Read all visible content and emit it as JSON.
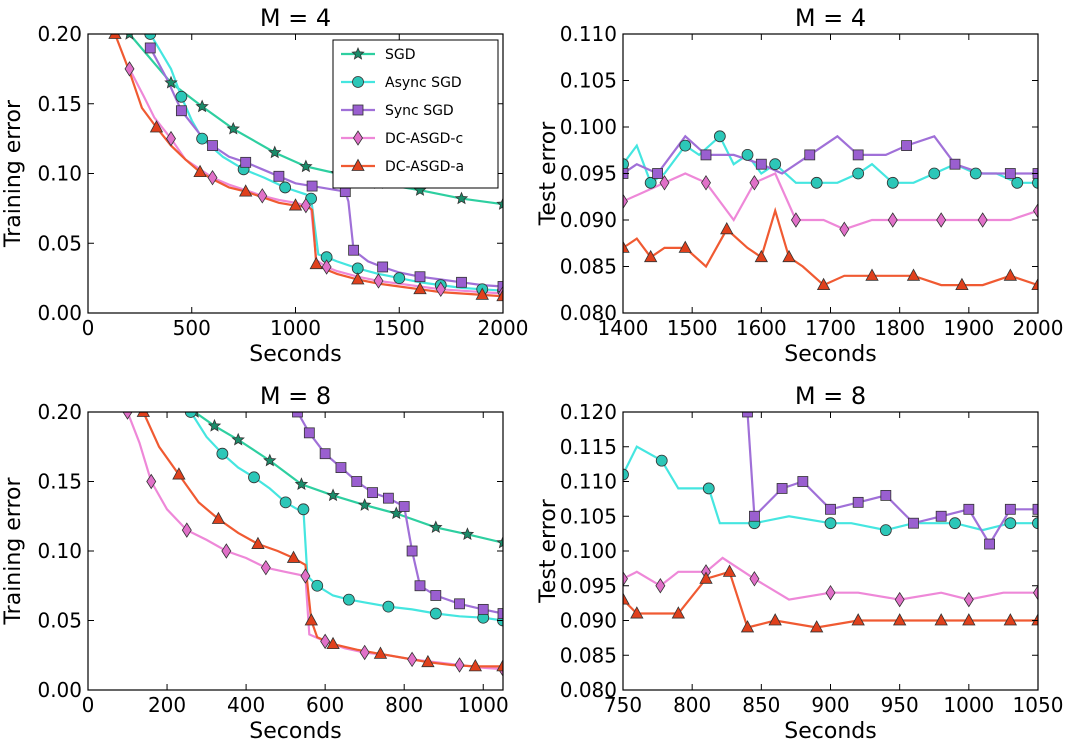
{
  "colors": {
    "SGD": "#2ecfa0",
    "Async SGD": "#45e6e0",
    "Sync SGD": "#a070d8",
    "DC-ASGD-c": "#ee88d8",
    "DC-ASGD-a": "#f05a32"
  },
  "marker_colors": {
    "SGD": "#1a8c6a",
    "Async SGD": "#2cc7b8",
    "Sync SGD": "#9a5fd0",
    "DC-ASGD-c": "#e070c8",
    "DC-ASGD-a": "#e0401c"
  },
  "chart_data": [
    {
      "type": "line",
      "title": "M = 4",
      "xlabel": "Seconds",
      "ylabel": "Training error",
      "xlim": [
        0,
        2000
      ],
      "ylim": [
        0.0,
        0.2
      ],
      "xticks": [
        0,
        500,
        1000,
        1500,
        2000
      ],
      "yticks": [
        0.0,
        0.05,
        0.1,
        0.15,
        0.2
      ],
      "ytick_labels": [
        "0.00",
        "0.05",
        "0.10",
        "0.15",
        "0.20"
      ],
      "legend": {
        "position": "upper right",
        "entries": [
          "SGD",
          "Async SGD",
          "Sync SGD",
          "DC-ASGD-c",
          "DC-ASGD-a"
        ],
        "markers": [
          "star",
          "circle",
          "square",
          "diamond",
          "triangle"
        ]
      },
      "series": [
        {
          "name": "SGD",
          "marker": "star",
          "x": [
            200,
            400,
            550,
            700,
            900,
            1050,
            1200,
            1400,
            1600,
            1800,
            2000
          ],
          "y": [
            0.2,
            0.165,
            0.148,
            0.132,
            0.115,
            0.105,
            0.1,
            0.093,
            0.088,
            0.082,
            0.078
          ]
        },
        {
          "name": "Async SGD",
          "marker": "circle",
          "x": [
            300,
            400,
            450,
            500,
            550,
            650,
            750,
            850,
            950,
            1050,
            1075,
            1110,
            1150,
            1200,
            1300,
            1400,
            1500,
            1600,
            1700,
            1800,
            1900,
            2000
          ],
          "y": [
            0.2,
            0.175,
            0.155,
            0.138,
            0.125,
            0.112,
            0.103,
            0.097,
            0.09,
            0.085,
            0.082,
            0.042,
            0.04,
            0.037,
            0.032,
            0.028,
            0.025,
            0.022,
            0.02,
            0.018,
            0.017,
            0.016
          ]
        },
        {
          "name": "Sync SGD",
          "marker": "square",
          "x": [
            300,
            380,
            450,
            540,
            600,
            680,
            760,
            840,
            920,
            1000,
            1080,
            1160,
            1240,
            1255,
            1280,
            1350,
            1420,
            1500,
            1600,
            1700,
            1800,
            1900,
            2000
          ],
          "y": [
            0.19,
            0.168,
            0.145,
            0.128,
            0.12,
            0.112,
            0.108,
            0.103,
            0.098,
            0.093,
            0.091,
            0.089,
            0.087,
            0.08,
            0.045,
            0.037,
            0.033,
            0.029,
            0.026,
            0.024,
            0.022,
            0.02,
            0.019
          ]
        },
        {
          "name": "DC-ASGD-c",
          "marker": "diamond",
          "x": [
            200,
            270,
            320,
            400,
            470,
            540,
            600,
            680,
            760,
            840,
            920,
            1000,
            1050,
            1075,
            1100,
            1150,
            1200,
            1300,
            1400,
            1500,
            1600,
            1700,
            1800,
            1900,
            2000
          ],
          "y": [
            0.175,
            0.155,
            0.14,
            0.125,
            0.11,
            0.103,
            0.097,
            0.092,
            0.088,
            0.084,
            0.081,
            0.079,
            0.077,
            0.075,
            0.038,
            0.033,
            0.03,
            0.026,
            0.023,
            0.021,
            0.019,
            0.017,
            0.016,
            0.015,
            0.014
          ]
        },
        {
          "name": "DC-ASGD-a",
          "marker": "triangle",
          "x": [
            130,
            200,
            260,
            330,
            400,
            470,
            540,
            600,
            680,
            760,
            840,
            920,
            1000,
            1060,
            1080,
            1100,
            1150,
            1200,
            1300,
            1400,
            1500,
            1600,
            1700,
            1800,
            1900,
            2000
          ],
          "y": [
            0.2,
            0.173,
            0.147,
            0.133,
            0.12,
            0.11,
            0.101,
            0.096,
            0.09,
            0.087,
            0.083,
            0.079,
            0.077,
            0.076,
            0.074,
            0.035,
            0.031,
            0.028,
            0.024,
            0.021,
            0.019,
            0.017,
            0.015,
            0.014,
            0.013,
            0.012
          ]
        }
      ]
    },
    {
      "type": "line",
      "title": "M = 4",
      "xlabel": "Seconds",
      "ylabel": "Test error",
      "xlim": [
        1400,
        2000
      ],
      "ylim": [
        0.08,
        0.11
      ],
      "xticks": [
        1400,
        1500,
        1600,
        1700,
        1800,
        1900,
        2000
      ],
      "yticks": [
        0.08,
        0.085,
        0.09,
        0.095,
        0.1,
        0.105,
        0.11
      ],
      "ytick_labels": [
        "0.080",
        "0.085",
        "0.090",
        "0.095",
        "0.100",
        "0.105",
        "0.110"
      ],
      "series": [
        {
          "name": "Async SGD",
          "marker": "circle",
          "x": [
            1400,
            1420,
            1440,
            1460,
            1490,
            1510,
            1540,
            1560,
            1580,
            1600,
            1620,
            1650,
            1680,
            1710,
            1740,
            1760,
            1790,
            1820,
            1850,
            1880,
            1910,
            1940,
            1970,
            2000
          ],
          "y": [
            0.096,
            0.098,
            0.094,
            0.095,
            0.098,
            0.097,
            0.099,
            0.096,
            0.097,
            0.095,
            0.096,
            0.094,
            0.094,
            0.094,
            0.095,
            0.096,
            0.094,
            0.094,
            0.095,
            0.096,
            0.095,
            0.095,
            0.094,
            0.094
          ]
        },
        {
          "name": "Sync SGD",
          "marker": "square",
          "x": [
            1400,
            1420,
            1450,
            1490,
            1520,
            1560,
            1600,
            1630,
            1670,
            1710,
            1740,
            1780,
            1810,
            1850,
            1880,
            1920,
            1960,
            2000
          ],
          "y": [
            0.095,
            0.096,
            0.095,
            0.099,
            0.097,
            0.097,
            0.096,
            0.095,
            0.097,
            0.099,
            0.097,
            0.097,
            0.098,
            0.099,
            0.096,
            0.095,
            0.095,
            0.095
          ]
        },
        {
          "name": "DC-ASGD-c",
          "marker": "diamond",
          "x": [
            1400,
            1430,
            1460,
            1490,
            1520,
            1560,
            1590,
            1620,
            1650,
            1690,
            1720,
            1760,
            1790,
            1830,
            1860,
            1890,
            1920,
            1960,
            2000
          ],
          "y": [
            0.092,
            0.093,
            0.094,
            0.095,
            0.094,
            0.09,
            0.094,
            0.095,
            0.09,
            0.09,
            0.089,
            0.09,
            0.09,
            0.09,
            0.09,
            0.09,
            0.09,
            0.09,
            0.091
          ]
        },
        {
          "name": "DC-ASGD-a",
          "marker": "triangle",
          "x": [
            1400,
            1420,
            1440,
            1460,
            1490,
            1520,
            1550,
            1580,
            1600,
            1620,
            1640,
            1660,
            1690,
            1720,
            1760,
            1790,
            1820,
            1860,
            1890,
            1920,
            1960,
            2000
          ],
          "y": [
            0.087,
            0.088,
            0.086,
            0.087,
            0.087,
            0.085,
            0.089,
            0.087,
            0.086,
            0.091,
            0.086,
            0.085,
            0.083,
            0.084,
            0.084,
            0.084,
            0.084,
            0.083,
            0.083,
            0.083,
            0.084,
            0.083
          ]
        }
      ]
    },
    {
      "type": "line",
      "title": "M = 8",
      "xlabel": "Seconds",
      "ylabel": "Training error",
      "xlim": [
        0,
        1050
      ],
      "ylim": [
        0.0,
        0.2
      ],
      "xticks": [
        0,
        200,
        400,
        600,
        800,
        1000
      ],
      "yticks": [
        0.0,
        0.05,
        0.1,
        0.15,
        0.2
      ],
      "ytick_labels": [
        "0.00",
        "0.05",
        "0.10",
        "0.15",
        "0.20"
      ],
      "series": [
        {
          "name": "SGD",
          "marker": "star",
          "x": [
            270,
            320,
            380,
            460,
            540,
            620,
            700,
            780,
            880,
            960,
            1050
          ],
          "y": [
            0.2,
            0.19,
            0.18,
            0.165,
            0.148,
            0.14,
            0.133,
            0.127,
            0.117,
            0.112,
            0.106
          ]
        },
        {
          "name": "Async SGD",
          "marker": "circle",
          "x": [
            260,
            300,
            340,
            380,
            420,
            460,
            500,
            530,
            545,
            555,
            580,
            620,
            660,
            700,
            760,
            820,
            880,
            940,
            1000,
            1050
          ],
          "y": [
            0.2,
            0.182,
            0.17,
            0.16,
            0.153,
            0.145,
            0.135,
            0.13,
            0.13,
            0.082,
            0.075,
            0.068,
            0.065,
            0.063,
            0.06,
            0.058,
            0.055,
            0.053,
            0.052,
            0.05
          ]
        },
        {
          "name": "Sync SGD",
          "marker": "square",
          "x": [
            530,
            560,
            600,
            640,
            680,
            720,
            760,
            800,
            820,
            840,
            880,
            940,
            1000,
            1050
          ],
          "y": [
            0.2,
            0.185,
            0.17,
            0.16,
            0.15,
            0.142,
            0.138,
            0.132,
            0.1,
            0.075,
            0.068,
            0.062,
            0.058,
            0.055
          ]
        },
        {
          "name": "DC-ASGD-c",
          "marker": "diamond",
          "x": [
            100,
            130,
            160,
            200,
            250,
            300,
            350,
            400,
            450,
            500,
            550,
            560,
            600,
            650,
            700,
            760,
            820,
            880,
            940,
            1000,
            1050
          ],
          "y": [
            0.2,
            0.178,
            0.15,
            0.13,
            0.115,
            0.108,
            0.1,
            0.095,
            0.088,
            0.085,
            0.082,
            0.04,
            0.035,
            0.03,
            0.027,
            0.025,
            0.022,
            0.02,
            0.018,
            0.016,
            0.015
          ]
        },
        {
          "name": "DC-ASGD-a",
          "marker": "triangle",
          "x": [
            140,
            180,
            230,
            280,
            330,
            380,
            430,
            480,
            520,
            550,
            565,
            580,
            620,
            680,
            740,
            800,
            860,
            920,
            980,
            1050
          ],
          "y": [
            0.2,
            0.175,
            0.155,
            0.135,
            0.123,
            0.113,
            0.105,
            0.1,
            0.095,
            0.09,
            0.05,
            0.038,
            0.033,
            0.029,
            0.026,
            0.023,
            0.02,
            0.018,
            0.017,
            0.017
          ]
        }
      ]
    },
    {
      "type": "line",
      "title": "M = 8",
      "xlabel": "Seconds",
      "ylabel": "Test error",
      "xlim": [
        750,
        1050
      ],
      "ylim": [
        0.08,
        0.12
      ],
      "xticks": [
        750,
        800,
        850,
        900,
        950,
        1000,
        1050
      ],
      "yticks": [
        0.08,
        0.085,
        0.09,
        0.095,
        0.1,
        0.105,
        0.11,
        0.115,
        0.12
      ],
      "ytick_labels": [
        "0.080",
        "0.085",
        "0.090",
        "0.095",
        "0.100",
        "0.105",
        "0.110",
        "0.115",
        "0.120"
      ],
      "series": [
        {
          "name": "Async SGD",
          "marker": "circle",
          "x": [
            750,
            760,
            778,
            790,
            812,
            820,
            845,
            870,
            900,
            915,
            940,
            960,
            990,
            1010,
            1030,
            1050
          ],
          "y": [
            0.111,
            0.115,
            0.113,
            0.109,
            0.109,
            0.104,
            0.104,
            0.105,
            0.104,
            0.104,
            0.103,
            0.104,
            0.104,
            0.103,
            0.104,
            0.104
          ]
        },
        {
          "name": "Sync SGD",
          "marker": "square",
          "x": [
            840,
            845,
            865,
            880,
            900,
            920,
            940,
            960,
            980,
            1000,
            1015,
            1030,
            1050
          ],
          "y": [
            0.12,
            0.105,
            0.109,
            0.11,
            0.106,
            0.107,
            0.108,
            0.104,
            0.105,
            0.106,
            0.101,
            0.106,
            0.106
          ]
        },
        {
          "name": "DC-ASGD-c",
          "marker": "diamond",
          "x": [
            750,
            760,
            777,
            790,
            810,
            822,
            845,
            870,
            900,
            920,
            950,
            980,
            1000,
            1025,
            1050
          ],
          "y": [
            0.096,
            0.097,
            0.095,
            0.097,
            0.097,
            0.099,
            0.096,
            0.093,
            0.094,
            0.094,
            0.093,
            0.094,
            0.093,
            0.094,
            0.094
          ]
        },
        {
          "name": "DC-ASGD-a",
          "marker": "triangle",
          "x": [
            750,
            760,
            790,
            810,
            827,
            840,
            860,
            890,
            920,
            950,
            980,
            1000,
            1030,
            1050
          ],
          "y": [
            0.093,
            0.091,
            0.091,
            0.096,
            0.097,
            0.089,
            0.09,
            0.089,
            0.09,
            0.09,
            0.09,
            0.09,
            0.09,
            0.09
          ]
        }
      ]
    }
  ]
}
